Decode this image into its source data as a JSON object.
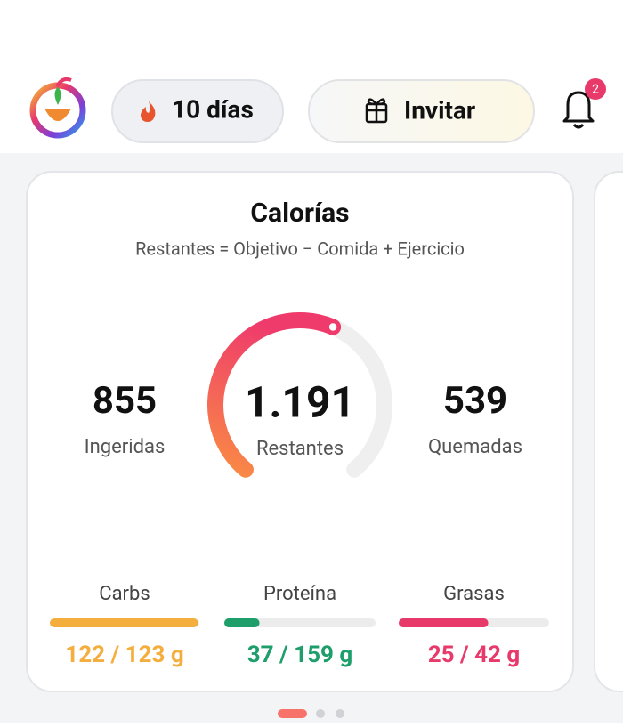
{
  "header": {
    "streak": "10 días",
    "invite": "Invitar",
    "notifications": "2"
  },
  "card": {
    "title": "Calorías",
    "subtitle": "Restantes = Objetivo − Comida + Ejercicio",
    "stats": [
      {
        "value": 855,
        "name": "Ingeridas"
      },
      {
        "value": 1191,
        "label": "1.191",
        "name": "Restantes"
      },
      {
        "value": 539,
        "name": "Quemadas"
      }
    ],
    "macros": [
      {
        "name": "Carbs",
        "value": 122,
        "goal": 123,
        "label": "122 / 123 g",
        "color": "#f4ae3e"
      },
      {
        "name": "Proteína",
        "value": 37,
        "goal": 159,
        "label": "37 / 159 g",
        "color": "#1e9e6a"
      },
      {
        "name": "Grasas",
        "value": 25,
        "goal": 42,
        "label": "25 / 42 g",
        "color": "#e8396b"
      }
    ]
  }
}
